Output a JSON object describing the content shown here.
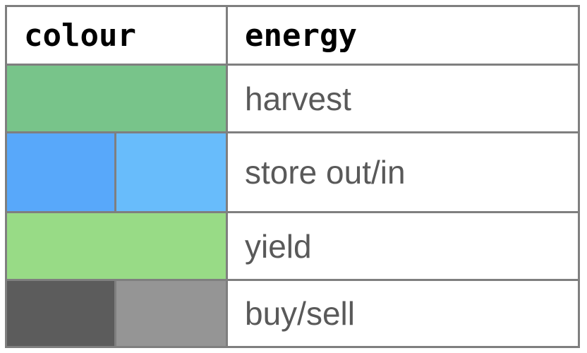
{
  "header": {
    "colour_label": "colour",
    "energy_label": "energy"
  },
  "rows": [
    {
      "label": "harvest",
      "colors": [
        "#78c48a"
      ]
    },
    {
      "label": "store out/in",
      "colors": [
        "#58a8fa",
        "#68bcfb"
      ]
    },
    {
      "label": "yield",
      "colors": [
        "#98db86"
      ]
    },
    {
      "label": "buy/sell",
      "colors": [
        "#5c5c5c",
        "#959595"
      ]
    }
  ]
}
